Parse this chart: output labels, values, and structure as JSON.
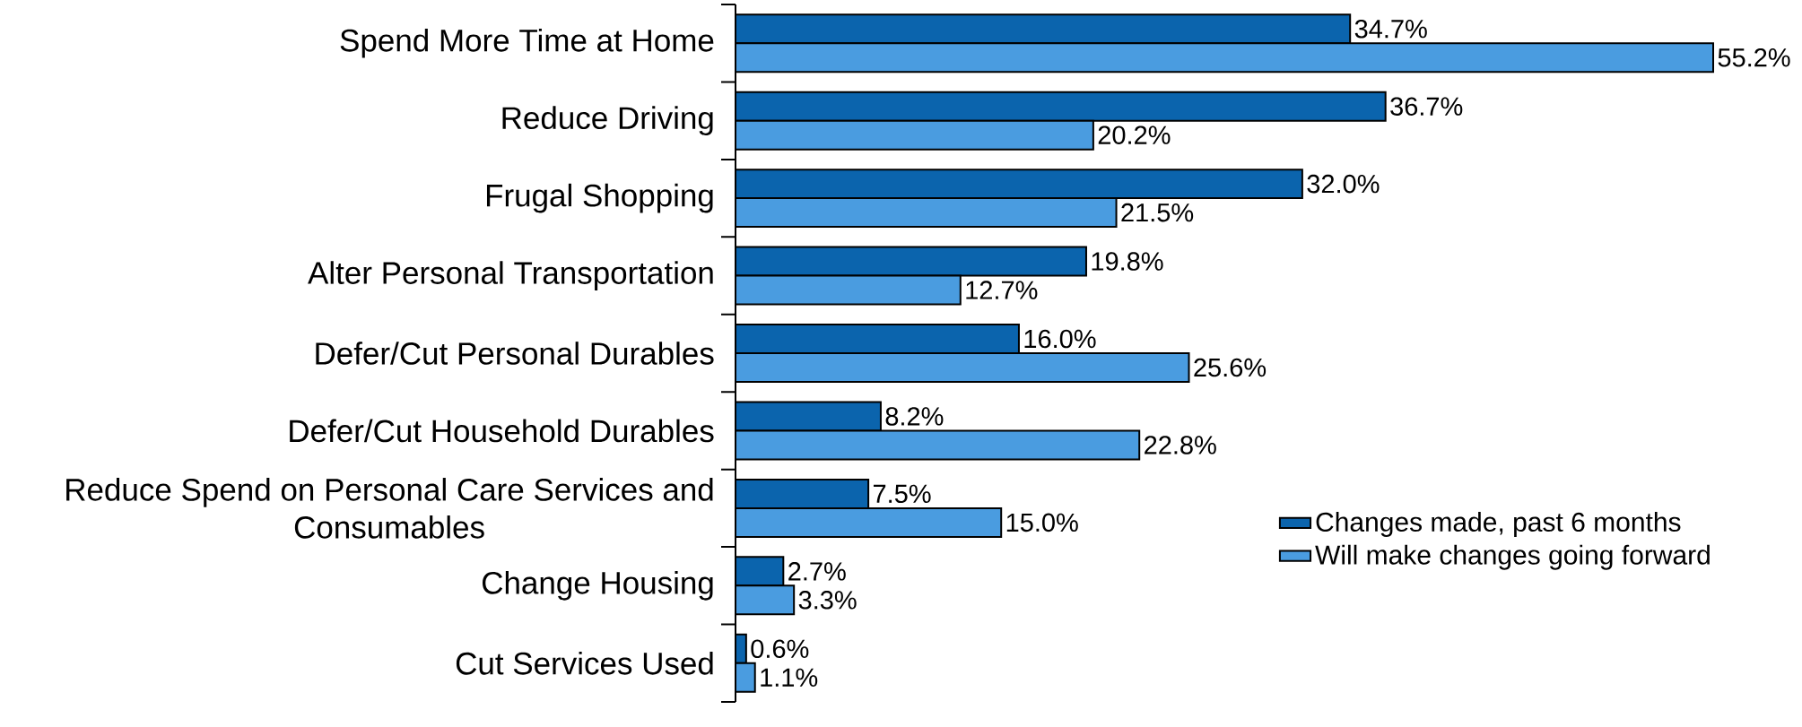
{
  "chart_data": {
    "type": "bar",
    "orientation": "horizontal",
    "legend": "right",
    "categories": [
      "Spend More Time at Home",
      "Reduce Driving",
      "Frugal Shopping",
      "Alter Personal Transportation",
      "Defer/Cut Personal Durables",
      "Defer/Cut Household Durables",
      "Reduce Spend on Personal Care Services and Consumables",
      "Change Housing",
      "Cut Services Used"
    ],
    "series": [
      {
        "name": "Changes made, past 6 months",
        "color": "#0b64ad",
        "values": [
          34.7,
          36.7,
          32.0,
          19.8,
          16.0,
          8.2,
          7.5,
          2.7,
          0.6
        ],
        "value_labels": [
          "34.7%",
          "36.7%",
          "32.0%",
          "19.8%",
          "16.0%",
          "8.2%",
          "7.5%",
          "2.7%",
          "0.6%"
        ]
      },
      {
        "name": "Will make changes going forward",
        "color": "#4a9ce0",
        "values": [
          55.2,
          20.2,
          21.5,
          12.7,
          25.6,
          22.8,
          15.0,
          3.3,
          1.1
        ],
        "value_labels": [
          "55.2%",
          "20.2%",
          "21.5%",
          "12.7%",
          "25.6%",
          "22.8%",
          "15.0%",
          "3.3%",
          "1.1%"
        ]
      }
    ]
  }
}
